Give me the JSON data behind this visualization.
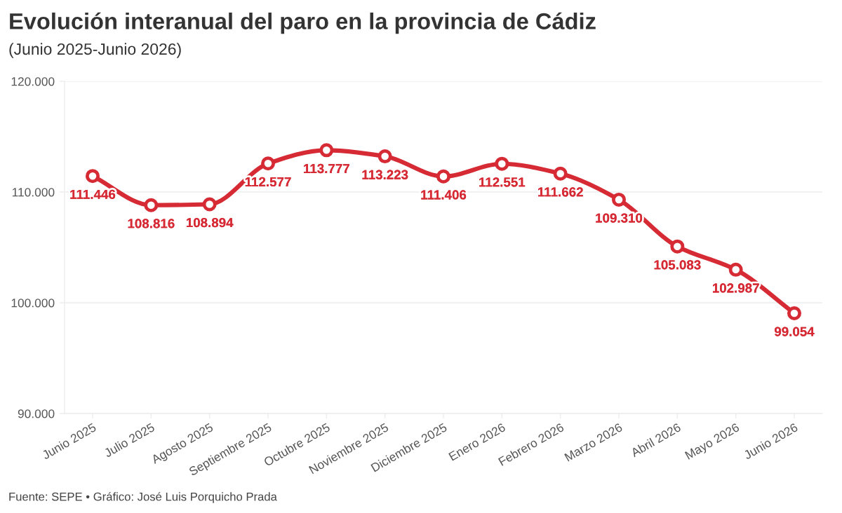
{
  "chart_data": {
    "type": "line",
    "title": "Evolución interanual del paro en la provincia de Cádiz",
    "subtitle": "(Junio 2025-Junio 2026)",
    "categories": [
      "Junio 2025",
      "Julio 2025",
      "Agosto 2025",
      "Septiembre 2025",
      "Octubre 2025",
      "Noviembre 2025",
      "Diciembre 2025",
      "Enero 2026",
      "Febrero 2026",
      "Marzo 2026",
      "Abril 2026",
      "Mayo 2026",
      "Junio 2026"
    ],
    "values": [
      111446,
      108816,
      108894,
      112577,
      113777,
      113223,
      111406,
      112551,
      111662,
      109310,
      105083,
      102987,
      99054
    ],
    "value_labels": [
      "111.446",
      "108.816",
      "108.894",
      "112.577",
      "113.777",
      "113.223",
      "111.406",
      "112.551",
      "111.662",
      "109.310",
      "105.083",
      "102.987",
      "99.054"
    ],
    "color": "#d62a35",
    "ylim": [
      90000,
      120000
    ],
    "yticks": [
      {
        "value": 90000,
        "label": "90.000"
      },
      {
        "value": 100000,
        "label": "100.000"
      },
      {
        "value": 110000,
        "label": "110.000"
      },
      {
        "value": 120000,
        "label": "120.000"
      }
    ],
    "grid": "y",
    "marker": "circle",
    "line_style": "solid",
    "annotations": [
      "Fuente: SEPE • Gráfico: José Luis Porquicho Prada"
    ]
  }
}
